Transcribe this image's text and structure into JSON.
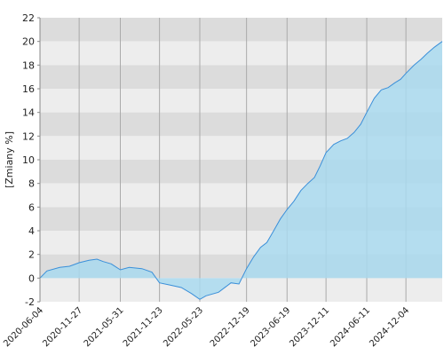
{
  "chart_data": {
    "type": "area",
    "y_label": "[Zmiany %]",
    "x": [
      "2020-06-04",
      "2020-07-05",
      "2020-09-01",
      "2020-10-15",
      "2020-11-27",
      "2021-01-10",
      "2021-02-15",
      "2021-03-15",
      "2021-04-20",
      "2021-05-31",
      "2021-07-10",
      "2021-09-05",
      "2021-10-20",
      "2021-11-23",
      "2022-01-10",
      "2022-03-01",
      "2022-04-15",
      "2022-05-23",
      "2022-06-20",
      "2022-08-15",
      "2022-10-10",
      "2022-11-15",
      "2022-12-19",
      "2023-01-20",
      "2023-02-20",
      "2023-03-20",
      "2023-04-20",
      "2023-05-20",
      "2023-06-19",
      "2023-07-20",
      "2023-08-20",
      "2023-09-20",
      "2023-10-20",
      "2023-11-15",
      "2023-12-11",
      "2024-01-15",
      "2024-02-15",
      "2024-03-15",
      "2024-04-15",
      "2024-05-15",
      "2024-06-11",
      "2024-07-15",
      "2024-08-15",
      "2024-09-15",
      "2024-10-15",
      "2024-11-10",
      "2024-12-04",
      "2025-01-10",
      "2025-02-10",
      "2025-03-10",
      "2025-04-10",
      "2025-05-16"
    ],
    "series": [
      {
        "color": "#3a8fd9",
        "fill": "#a9d9ee",
        "values": [
          0,
          0.6,
          0.9,
          1.0,
          1.3,
          1.5,
          1.6,
          1.4,
          1.2,
          0.7,
          0.9,
          0.8,
          0.5,
          -0.4,
          -0.6,
          -0.8,
          -1.3,
          -1.8,
          -1.5,
          -1.2,
          -0.4,
          -0.5,
          0.8,
          1.8,
          2.6,
          3.0,
          4.0,
          5.0,
          5.8,
          6.5,
          7.4,
          8.0,
          8.5,
          9.5,
          10.6,
          11.3,
          11.6,
          11.8,
          12.3,
          13.0,
          14.0,
          15.2,
          15.9,
          16.1,
          16.5,
          16.8,
          17.3,
          18.0,
          18.5,
          19.0,
          19.5,
          20.0
        ]
      }
    ],
    "xlim": [
      "2020-06-04",
      "2025-05-16"
    ],
    "xticks": [
      "2020-06-04",
      "2020-11-27",
      "2021-05-31",
      "2021-11-23",
      "2022-05-23",
      "2022-12-19",
      "2023-06-19",
      "2023-12-11",
      "2024-06-11",
      "2024-12-04"
    ],
    "ylim": [
      -2,
      22
    ],
    "yticks": [
      -2,
      0,
      2,
      4,
      6,
      8,
      10,
      12,
      14,
      16,
      18,
      20,
      22
    ],
    "band_colors": [
      "#dcdcdc",
      "#ededed"
    ]
  }
}
